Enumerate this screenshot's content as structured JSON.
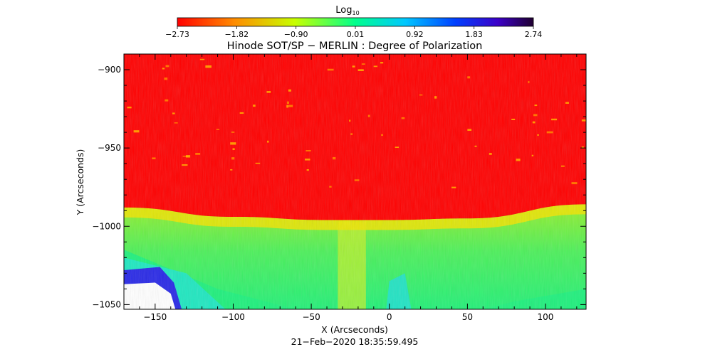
{
  "colorbar": {
    "label_main": "Log",
    "label_sub": "10",
    "ticks": [
      "-2.73",
      "-1.82",
      "-0.90",
      "0.01",
      "0.92",
      "1.83",
      "2.74"
    ]
  },
  "chart_data": {
    "type": "heatmap",
    "title": "Hinode SOT/SP − MERLIN : Degree of Polarization",
    "xlabel": "X (Arcseconds)",
    "ylabel": "Y (Arcseconds)",
    "xlim": [
      -170,
      126
    ],
    "ylim": [
      -1053,
      -890
    ],
    "xticks": [
      -150,
      -100,
      -50,
      0,
      50,
      100
    ],
    "xtick_labels": [
      "−150",
      "−100",
      "−50",
      "0",
      "50",
      "100"
    ],
    "yticks": [
      -900,
      -950,
      -1000,
      -1050
    ],
    "ytick_labels": [
      "−900",
      "−950",
      "−1000",
      "−1050"
    ],
    "colorscale_range": [
      -2.73,
      2.74
    ],
    "colormap": [
      "#ff0000",
      "#ff8c00",
      "#c8ff00",
      "#00ff8c",
      "#00c8ff",
      "#0040ff",
      "#3c00c8",
      "#200030"
    ],
    "limb_curve": {
      "x": [
        -170,
        -100,
        -40,
        0,
        50,
        126
      ],
      "y": [
        -988,
        -994,
        -996,
        -996,
        -995,
        -986
      ]
    },
    "grid": false,
    "timestamp": "21−Feb−2020 18:35:59.495"
  }
}
